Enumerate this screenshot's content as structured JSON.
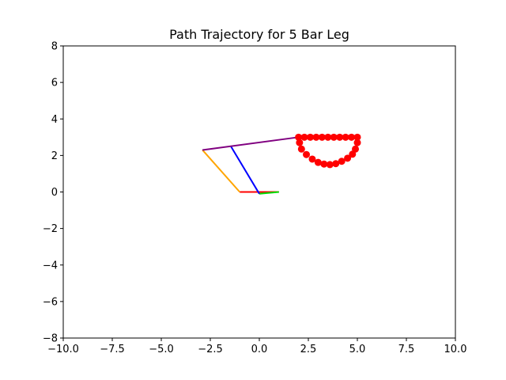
{
  "chart_data": {
    "type": "line",
    "title": "Path Trajectory for 5 Bar Leg",
    "xlabel": "",
    "ylabel": "",
    "xlim": [
      -10,
      10
    ],
    "ylim": [
      -8,
      8
    ],
    "grid": false,
    "xticks": [
      {
        "value": -10,
        "label": "−10.0"
      },
      {
        "value": -7.5,
        "label": "−7.5"
      },
      {
        "value": -5,
        "label": "−5.0"
      },
      {
        "value": -2.5,
        "label": "−2.5"
      },
      {
        "value": 0,
        "label": "0.0"
      },
      {
        "value": 2.5,
        "label": "2.5"
      },
      {
        "value": 5,
        "label": "5.0"
      },
      {
        "value": 7.5,
        "label": "7.5"
      },
      {
        "value": 10,
        "label": "10.0"
      }
    ],
    "yticks": [
      {
        "value": -8,
        "label": "−8"
      },
      {
        "value": -6,
        "label": "−6"
      },
      {
        "value": -4,
        "label": "−4"
      },
      {
        "value": -2,
        "label": "−2"
      },
      {
        "value": 0,
        "label": "0"
      },
      {
        "value": 2,
        "label": "2"
      },
      {
        "value": 4,
        "label": "4"
      },
      {
        "value": 6,
        "label": "6"
      },
      {
        "value": 8,
        "label": "8"
      }
    ],
    "links": [
      {
        "color": "#ff0000",
        "points": [
          [
            -1,
            0
          ],
          [
            1,
            0
          ]
        ]
      },
      {
        "color": "#00dd00",
        "points": [
          [
            0,
            -0.1
          ],
          [
            1,
            0
          ]
        ]
      },
      {
        "color": "#ffa500",
        "points": [
          [
            -1,
            0
          ],
          [
            -2.9,
            2.3
          ]
        ]
      },
      {
        "color": "#0000ff",
        "points": [
          [
            0,
            -0.1
          ],
          [
            -1.45,
            2.5
          ]
        ]
      },
      {
        "color": "#800080",
        "points": [
          [
            -2.9,
            2.3
          ],
          [
            2,
            3
          ]
        ]
      }
    ],
    "trajectory": {
      "color": "#ff0000",
      "points": [
        [
          2.0,
          3.0
        ],
        [
          2.3,
          3.0
        ],
        [
          2.6,
          3.0
        ],
        [
          2.9,
          3.0
        ],
        [
          3.2,
          3.0
        ],
        [
          3.5,
          3.0
        ],
        [
          3.8,
          3.0
        ],
        [
          4.1,
          3.0
        ],
        [
          4.4,
          3.0
        ],
        [
          4.7,
          3.0
        ],
        [
          5.0,
          3.0
        ],
        [
          2.05,
          2.7
        ],
        [
          2.15,
          2.35
        ],
        [
          2.4,
          2.05
        ],
        [
          2.7,
          1.8
        ],
        [
          3.0,
          1.62
        ],
        [
          3.3,
          1.53
        ],
        [
          3.6,
          1.5
        ],
        [
          3.9,
          1.55
        ],
        [
          4.2,
          1.68
        ],
        [
          4.5,
          1.85
        ],
        [
          4.75,
          2.07
        ],
        [
          4.9,
          2.35
        ],
        [
          5.0,
          2.7
        ]
      ]
    }
  }
}
